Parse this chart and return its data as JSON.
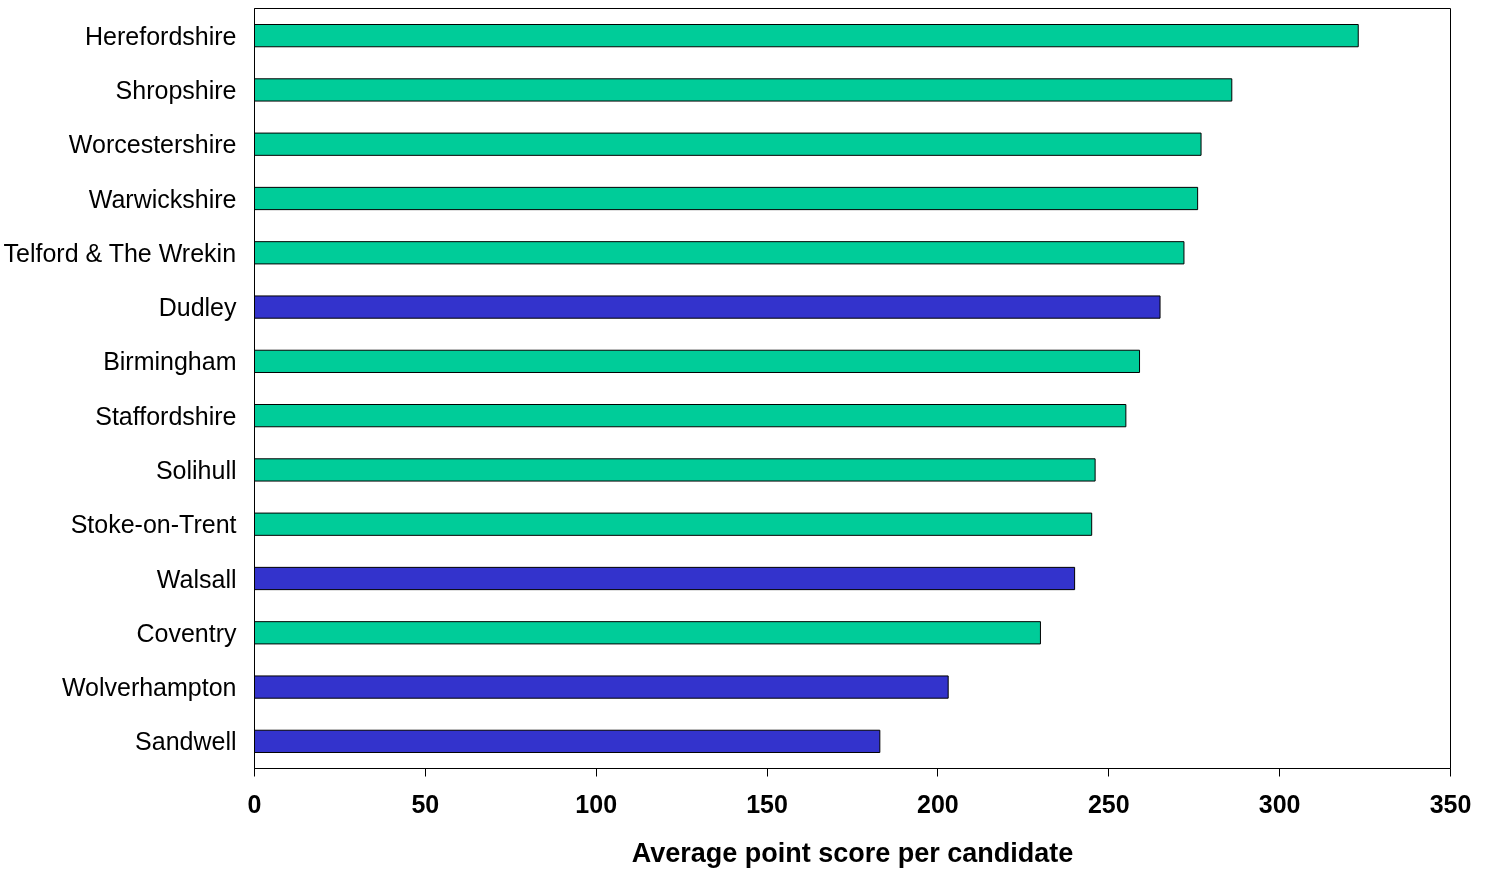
{
  "chart_data": {
    "type": "bar",
    "orientation": "horizontal",
    "xlabel": "Average point score per candidate",
    "categories": [
      "Herefordshire",
      "Shropshire",
      "Worcestershire",
      "Warwickshire",
      "Telford & The Wrekin",
      "Dudley",
      "Birmingham",
      "Staffordshire",
      "Solihull",
      "Stoke-on-Trent",
      "Walsall",
      "Coventry",
      "Wolverhampton",
      "Sandwell"
    ],
    "values": [
      323,
      286,
      277,
      276,
      272,
      265,
      259,
      255,
      246,
      245,
      240,
      230,
      203,
      183
    ],
    "colors": [
      "#00cc99",
      "#00cc99",
      "#00cc99",
      "#00cc99",
      "#00cc99",
      "#3333cc",
      "#00cc99",
      "#00cc99",
      "#00cc99",
      "#00cc99",
      "#3333cc",
      "#00cc99",
      "#3333cc",
      "#3333cc"
    ],
    "xlim": [
      0,
      350
    ],
    "xticks": [
      0,
      50,
      100,
      150,
      200,
      250,
      300,
      350
    ],
    "grid": false
  }
}
